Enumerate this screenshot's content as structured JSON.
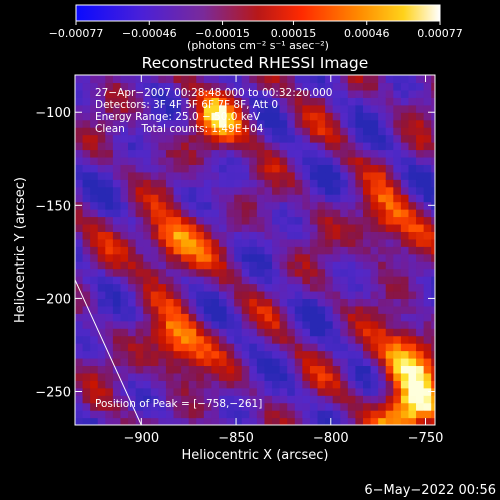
{
  "chart_data": {
    "type": "heatmap",
    "title": "Reconstructed RHESSI Image",
    "xlabel": "Heliocentric X (arcsec)",
    "ylabel": "Heliocentric Y (arcsec)",
    "xlim": [
      -935,
      -745
    ],
    "ylim": [
      -268,
      -80
    ],
    "x_ticks": [
      -900,
      -850,
      -800,
      -750
    ],
    "x_tick_labels": [
      "−900",
      "−850",
      "−800",
      "−750"
    ],
    "y_ticks": [
      -100,
      -150,
      -200,
      -250
    ],
    "y_tick_labels": [
      "−100",
      "−150",
      "−200",
      "−250"
    ],
    "colorbar": {
      "min": -0.00077,
      "max": 0.00077,
      "colormap": "blue-purple-red-orange-yellow-white",
      "ticks": [
        -0.00077,
        -0.00046,
        -0.00015,
        0.00015,
        0.00046,
        0.00077
      ],
      "tick_labels": [
        "−0.00077",
        "−0.00046",
        "−0.00015",
        "0.00015",
        "0.00046",
        "0.00077"
      ],
      "unit_label": "(photons cm⁻² s⁻¹ asec⁻²)"
    },
    "annotations": [
      "27−Apr−2007 00:28:48.000 to 00:32:20.000",
      "Detectors: 3F 4F 5F 6F 7F 8F, Att 0",
      "Energy Range: 25.0 − 50.0 keV",
      "Clean     Total counts: 1.49E+04",
      "Position of Peak = [−758,−261]"
    ],
    "peak": {
      "x": -758,
      "y": -261
    },
    "limb_line": [
      [
        -935,
        -190
      ],
      [
        -900,
        -268
      ]
    ],
    "bright_sources": [
      {
        "x": -885,
        "y": -170,
        "intensity": 0.78
      },
      {
        "x": -880,
        "y": -225,
        "intensity": 0.72
      },
      {
        "x": -760,
        "y": -230,
        "intensity": 0.75
      },
      {
        "x": -758,
        "y": -261,
        "intensity": 1.0
      },
      {
        "x": -858,
        "y": -105,
        "intensity": 0.6
      },
      {
        "x": -770,
        "y": -160,
        "intensity": 0.62
      }
    ]
  },
  "footer": {
    "date": "6−May−2022 00:56"
  }
}
